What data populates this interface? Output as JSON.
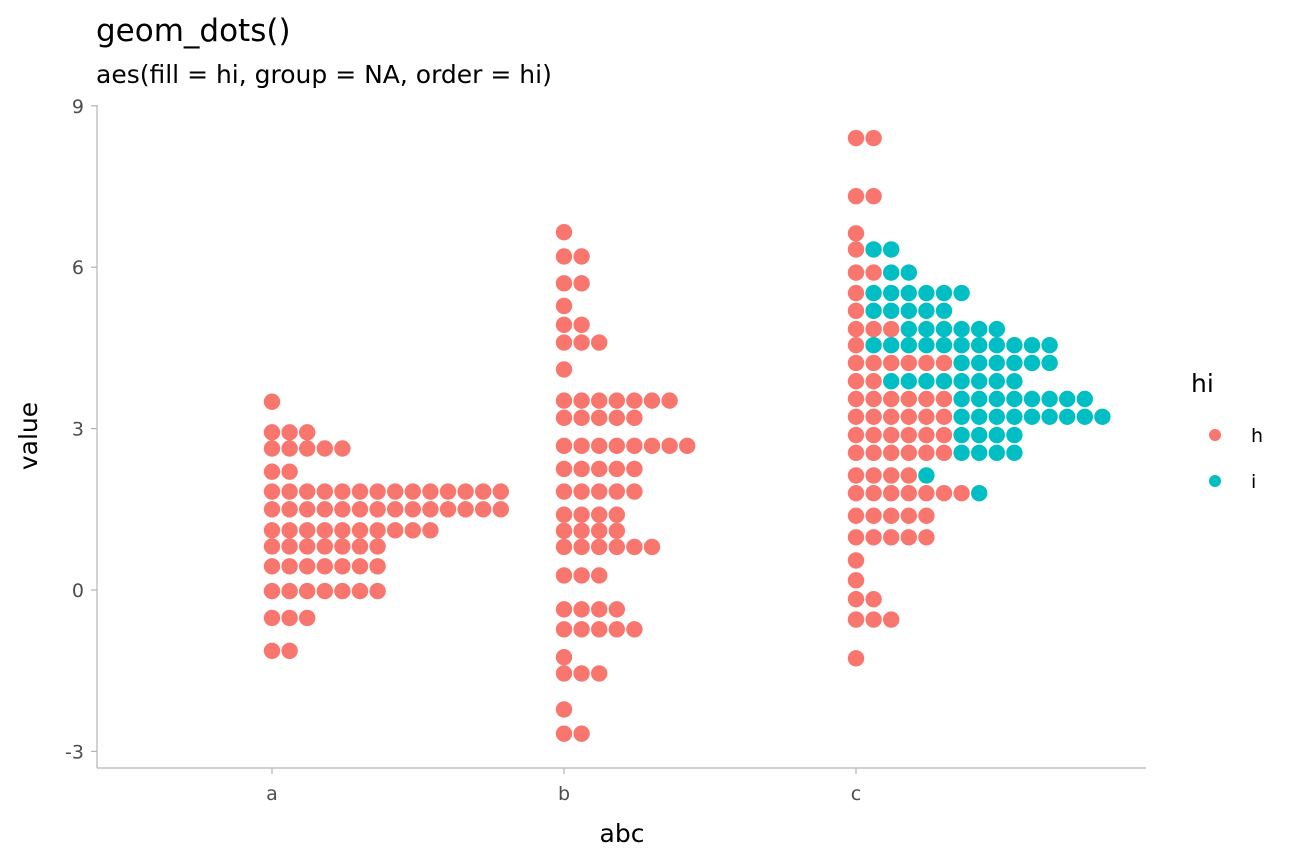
{
  "chart_data": {
    "type": "scatter",
    "subtype": "dotplot",
    "title": "geom_dots()",
    "subtitle": "aes(fill = hi, group = NA, order = hi)",
    "xlabel": "abc",
    "ylabel": "value",
    "categories": [
      "a",
      "b",
      "c"
    ],
    "ylim": [
      -3.3,
      9
    ],
    "yticks": [
      -3,
      0,
      3,
      6,
      9
    ],
    "ytick_labels": [
      "-3",
      "0",
      "3",
      "6",
      "9"
    ],
    "grid": false,
    "legend": {
      "title": "hi",
      "position": "right",
      "entries": [
        {
          "label": "h",
          "color": "#F8766D"
        },
        {
          "label": "i",
          "color": "#00BFC4"
        }
      ]
    },
    "series_colors": {
      "h": "#F8766D",
      "i": "#00BFC4"
    },
    "bins": [
      {
        "category": "a",
        "y": 3.5,
        "groups": [
          [
            "h",
            1
          ]
        ]
      },
      {
        "category": "a",
        "y": 2.93,
        "groups": [
          [
            "h",
            3
          ]
        ]
      },
      {
        "category": "a",
        "y": 2.63,
        "groups": [
          [
            "h",
            5
          ]
        ]
      },
      {
        "category": "a",
        "y": 2.2,
        "groups": [
          [
            "h",
            2
          ]
        ]
      },
      {
        "category": "a",
        "y": 1.83,
        "groups": [
          [
            "h",
            14
          ]
        ]
      },
      {
        "category": "a",
        "y": 1.5,
        "groups": [
          [
            "h",
            14
          ]
        ]
      },
      {
        "category": "a",
        "y": 1.11,
        "groups": [
          [
            "h",
            10
          ]
        ]
      },
      {
        "category": "a",
        "y": 0.81,
        "groups": [
          [
            "h",
            7
          ]
        ]
      },
      {
        "category": "a",
        "y": 0.44,
        "groups": [
          [
            "h",
            7
          ]
        ]
      },
      {
        "category": "a",
        "y": -0.02,
        "groups": [
          [
            "h",
            7
          ]
        ]
      },
      {
        "category": "a",
        "y": -0.52,
        "groups": [
          [
            "h",
            3
          ]
        ]
      },
      {
        "category": "a",
        "y": -1.13,
        "groups": [
          [
            "h",
            2
          ]
        ]
      },
      {
        "category": "b",
        "y": 6.65,
        "groups": [
          [
            "h",
            1
          ]
        ]
      },
      {
        "category": "b",
        "y": 6.2,
        "groups": [
          [
            "h",
            2
          ]
        ]
      },
      {
        "category": "b",
        "y": 5.7,
        "groups": [
          [
            "h",
            2
          ]
        ]
      },
      {
        "category": "b",
        "y": 5.28,
        "groups": [
          [
            "h",
            1
          ]
        ]
      },
      {
        "category": "b",
        "y": 4.93,
        "groups": [
          [
            "h",
            2
          ]
        ]
      },
      {
        "category": "b",
        "y": 4.6,
        "groups": [
          [
            "h",
            3
          ]
        ]
      },
      {
        "category": "b",
        "y": 4.1,
        "groups": [
          [
            "h",
            1
          ]
        ]
      },
      {
        "category": "b",
        "y": 3.52,
        "groups": [
          [
            "h",
            7
          ]
        ]
      },
      {
        "category": "b",
        "y": 3.2,
        "groups": [
          [
            "h",
            5
          ]
        ]
      },
      {
        "category": "b",
        "y": 2.68,
        "groups": [
          [
            "h",
            8
          ]
        ]
      },
      {
        "category": "b",
        "y": 2.25,
        "groups": [
          [
            "h",
            5
          ]
        ]
      },
      {
        "category": "b",
        "y": 1.83,
        "groups": [
          [
            "h",
            5
          ]
        ]
      },
      {
        "category": "b",
        "y": 1.4,
        "groups": [
          [
            "h",
            4
          ]
        ]
      },
      {
        "category": "b",
        "y": 1.1,
        "groups": [
          [
            "h",
            4
          ]
        ]
      },
      {
        "category": "b",
        "y": 0.8,
        "groups": [
          [
            "h",
            6
          ]
        ]
      },
      {
        "category": "b",
        "y": 0.27,
        "groups": [
          [
            "h",
            3
          ]
        ]
      },
      {
        "category": "b",
        "y": -0.36,
        "groups": [
          [
            "h",
            4
          ]
        ]
      },
      {
        "category": "b",
        "y": -0.73,
        "groups": [
          [
            "h",
            5
          ]
        ]
      },
      {
        "category": "b",
        "y": -1.25,
        "groups": [
          [
            "h",
            1
          ]
        ]
      },
      {
        "category": "b",
        "y": -1.55,
        "groups": [
          [
            "h",
            3
          ]
        ]
      },
      {
        "category": "b",
        "y": -2.22,
        "groups": [
          [
            "h",
            1
          ]
        ]
      },
      {
        "category": "b",
        "y": -2.67,
        "groups": [
          [
            "h",
            2
          ]
        ]
      },
      {
        "category": "c",
        "y": 8.4,
        "groups": [
          [
            "h",
            2
          ]
        ]
      },
      {
        "category": "c",
        "y": 7.32,
        "groups": [
          [
            "h",
            2
          ]
        ]
      },
      {
        "category": "c",
        "y": 6.63,
        "groups": [
          [
            "h",
            1
          ]
        ]
      },
      {
        "category": "c",
        "y": 6.33,
        "groups": [
          [
            "h",
            1
          ],
          [
            "i",
            2
          ]
        ]
      },
      {
        "category": "c",
        "y": 5.9,
        "groups": [
          [
            "h",
            2
          ],
          [
            "i",
            2
          ]
        ]
      },
      {
        "category": "c",
        "y": 5.52,
        "groups": [
          [
            "h",
            1
          ],
          [
            "i",
            6
          ]
        ]
      },
      {
        "category": "c",
        "y": 5.19,
        "groups": [
          [
            "h",
            1
          ],
          [
            "i",
            5
          ]
        ]
      },
      {
        "category": "c",
        "y": 4.85,
        "groups": [
          [
            "h",
            3
          ],
          [
            "i",
            6
          ]
        ]
      },
      {
        "category": "c",
        "y": 4.55,
        "groups": [
          [
            "h",
            1
          ],
          [
            "i",
            11
          ]
        ]
      },
      {
        "category": "c",
        "y": 4.22,
        "groups": [
          [
            "h",
            6
          ],
          [
            "i",
            6
          ]
        ]
      },
      {
        "category": "c",
        "y": 3.88,
        "groups": [
          [
            "h",
            2
          ],
          [
            "i",
            8
          ]
        ]
      },
      {
        "category": "c",
        "y": 3.55,
        "groups": [
          [
            "h",
            6
          ],
          [
            "i",
            8
          ]
        ]
      },
      {
        "category": "c",
        "y": 3.22,
        "groups": [
          [
            "h",
            6
          ],
          [
            "i",
            9
          ]
        ]
      },
      {
        "category": "c",
        "y": 2.88,
        "groups": [
          [
            "h",
            6
          ],
          [
            "i",
            4
          ]
        ]
      },
      {
        "category": "c",
        "y": 2.55,
        "groups": [
          [
            "h",
            6
          ],
          [
            "i",
            4
          ]
        ]
      },
      {
        "category": "c",
        "y": 2.13,
        "groups": [
          [
            "h",
            4
          ],
          [
            "i",
            1
          ]
        ]
      },
      {
        "category": "c",
        "y": 1.8,
        "groups": [
          [
            "h",
            7
          ],
          [
            "i",
            1
          ]
        ]
      },
      {
        "category": "c",
        "y": 1.38,
        "groups": [
          [
            "h",
            5
          ]
        ]
      },
      {
        "category": "c",
        "y": 0.98,
        "groups": [
          [
            "h",
            5
          ]
        ]
      },
      {
        "category": "c",
        "y": 0.55,
        "groups": [
          [
            "h",
            1
          ]
        ]
      },
      {
        "category": "c",
        "y": 0.18,
        "groups": [
          [
            "h",
            1
          ]
        ]
      },
      {
        "category": "c",
        "y": -0.17,
        "groups": [
          [
            "h",
            2
          ]
        ]
      },
      {
        "category": "c",
        "y": -0.55,
        "groups": [
          [
            "h",
            3
          ]
        ]
      },
      {
        "category": "c",
        "y": -1.27,
        "groups": [
          [
            "h",
            1
          ]
        ]
      }
    ]
  }
}
